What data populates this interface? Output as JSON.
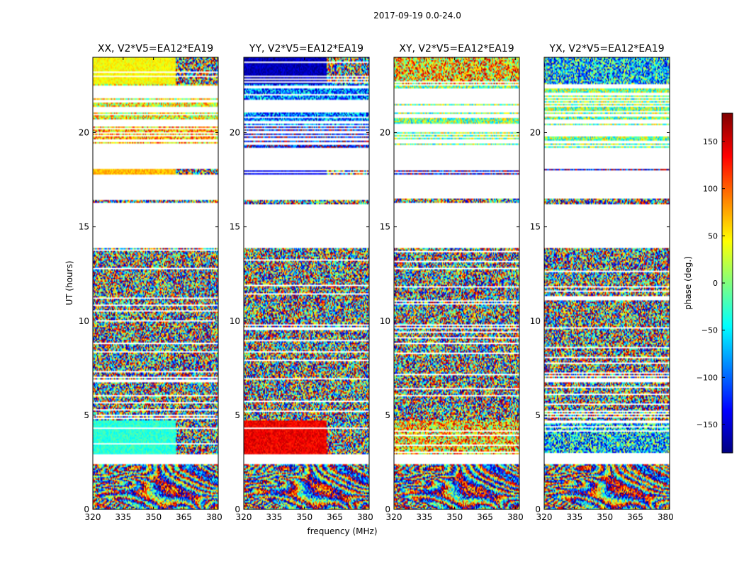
{
  "figure": {
    "suptitle": "2017-09-19 0.0-24.0",
    "xlabel": "frequency (MHz)",
    "ylabel": "UT (hours)"
  },
  "chart_data": {
    "type": "heatmap",
    "x_range_mhz": [
      320,
      382
    ],
    "y_range_hours": [
      0,
      24
    ],
    "xticks": [
      320,
      335,
      350,
      365,
      380
    ],
    "yticks": [
      0,
      5,
      10,
      15,
      20
    ],
    "colormap": "jet",
    "colorbar": {
      "label": "phase (deg.)",
      "range": [
        -180,
        180
      ],
      "ticks": [
        -150,
        -100,
        -50,
        0,
        50,
        100,
        150
      ],
      "tick_labels": [
        "−150",
        "−100",
        "−50",
        "0",
        "50",
        "100",
        "150"
      ]
    },
    "panels": [
      {
        "title": "XX, V2*V5=EA12*EA19",
        "pol": "XX",
        "bands": [
          {
            "t0": 0.0,
            "t1": 2.4,
            "kind": "fringe",
            "phase": 0
          },
          {
            "t0": 2.4,
            "t1": 2.9,
            "kind": "blank"
          },
          {
            "t0": 2.9,
            "t1": 4.7,
            "kind": "solid",
            "phase": -30,
            "split_mhz": 361
          },
          {
            "t0": 4.7,
            "t1": 5.2,
            "kind": "noise"
          },
          {
            "t0": 5.2,
            "t1": 13.9,
            "kind": "noise"
          },
          {
            "t0": 13.9,
            "t1": 16.2,
            "kind": "blank"
          },
          {
            "t0": 16.2,
            "t1": 16.5,
            "kind": "noise"
          },
          {
            "t0": 16.5,
            "t1": 17.8,
            "kind": "blank"
          },
          {
            "t0": 17.8,
            "t1": 18.1,
            "kind": "solid",
            "phase": 70,
            "split_mhz": 361
          },
          {
            "t0": 18.1,
            "t1": 19.2,
            "kind": "blank"
          },
          {
            "t0": 19.2,
            "t1": 20.4,
            "kind": "sparse",
            "phase": 70
          },
          {
            "t0": 20.4,
            "t1": 22.6,
            "kind": "sparse",
            "phase": 40
          },
          {
            "t0": 22.6,
            "t1": 24.0,
            "kind": "solid",
            "phase": 45,
            "split_mhz": 361
          }
        ]
      },
      {
        "title": "YY, V2*V5=EA12*EA19",
        "pol": "YY",
        "bands": [
          {
            "t0": 0.0,
            "t1": 2.4,
            "kind": "fringe",
            "phase": 0
          },
          {
            "t0": 2.4,
            "t1": 2.9,
            "kind": "blank"
          },
          {
            "t0": 2.9,
            "t1": 4.7,
            "kind": "solid",
            "phase": 140,
            "split_mhz": 361
          },
          {
            "t0": 4.7,
            "t1": 5.2,
            "kind": "noise"
          },
          {
            "t0": 5.2,
            "t1": 13.9,
            "kind": "noise"
          },
          {
            "t0": 13.9,
            "t1": 16.2,
            "kind": "blank"
          },
          {
            "t0": 16.2,
            "t1": 16.5,
            "kind": "noise"
          },
          {
            "t0": 16.5,
            "t1": 17.8,
            "kind": "blank"
          },
          {
            "t0": 17.8,
            "t1": 18.1,
            "kind": "solid",
            "phase": -140,
            "split_mhz": 361
          },
          {
            "t0": 18.1,
            "t1": 19.2,
            "kind": "blank"
          },
          {
            "t0": 19.2,
            "t1": 20.4,
            "kind": "sparse",
            "phase": -140
          },
          {
            "t0": 20.4,
            "t1": 22.6,
            "kind": "sparse",
            "phase": -90
          },
          {
            "t0": 22.6,
            "t1": 24.0,
            "kind": "solid",
            "phase": -160,
            "split_mhz": 361
          }
        ]
      },
      {
        "title": "XY, V2*V5=EA12*EA19",
        "pol": "XY",
        "bands": [
          {
            "t0": 0.0,
            "t1": 2.4,
            "kind": "fringe",
            "phase": 0
          },
          {
            "t0": 2.4,
            "t1": 2.9,
            "kind": "blank"
          },
          {
            "t0": 2.9,
            "t1": 4.7,
            "kind": "noise",
            "phase": 60
          },
          {
            "t0": 4.7,
            "t1": 5.2,
            "kind": "noise"
          },
          {
            "t0": 5.2,
            "t1": 13.9,
            "kind": "noise"
          },
          {
            "t0": 13.9,
            "t1": 16.2,
            "kind": "blank"
          },
          {
            "t0": 16.2,
            "t1": 16.5,
            "kind": "noise"
          },
          {
            "t0": 16.5,
            "t1": 17.8,
            "kind": "blank"
          },
          {
            "t0": 17.8,
            "t1": 18.1,
            "kind": "sparse",
            "phase": -150
          },
          {
            "t0": 18.1,
            "t1": 19.2,
            "kind": "blank"
          },
          {
            "t0": 19.2,
            "t1": 20.4,
            "kind": "sparse",
            "phase": 0
          },
          {
            "t0": 20.4,
            "t1": 22.6,
            "kind": "sparse",
            "phase": 0
          },
          {
            "t0": 22.6,
            "t1": 24.0,
            "kind": "noise",
            "phase": 60
          }
        ]
      },
      {
        "title": "YX, V2*V5=EA12*EA19",
        "pol": "YX",
        "bands": [
          {
            "t0": 0.0,
            "t1": 2.4,
            "kind": "fringe",
            "phase": 0
          },
          {
            "t0": 2.4,
            "t1": 2.9,
            "kind": "blank"
          },
          {
            "t0": 2.9,
            "t1": 4.7,
            "kind": "noise",
            "phase": -60
          },
          {
            "t0": 4.7,
            "t1": 5.2,
            "kind": "noise"
          },
          {
            "t0": 5.2,
            "t1": 13.9,
            "kind": "noise"
          },
          {
            "t0": 13.9,
            "t1": 16.2,
            "kind": "blank"
          },
          {
            "t0": 16.2,
            "t1": 16.5,
            "kind": "noise"
          },
          {
            "t0": 16.5,
            "t1": 17.8,
            "kind": "blank"
          },
          {
            "t0": 17.8,
            "t1": 18.1,
            "kind": "sparse",
            "phase": -150
          },
          {
            "t0": 18.1,
            "t1": 19.2,
            "kind": "blank"
          },
          {
            "t0": 19.2,
            "t1": 20.4,
            "kind": "sparse",
            "phase": 0
          },
          {
            "t0": 20.4,
            "t1": 22.6,
            "kind": "sparse",
            "phase": 0
          },
          {
            "t0": 22.6,
            "t1": 24.0,
            "kind": "noise",
            "phase": -60
          }
        ]
      }
    ]
  }
}
